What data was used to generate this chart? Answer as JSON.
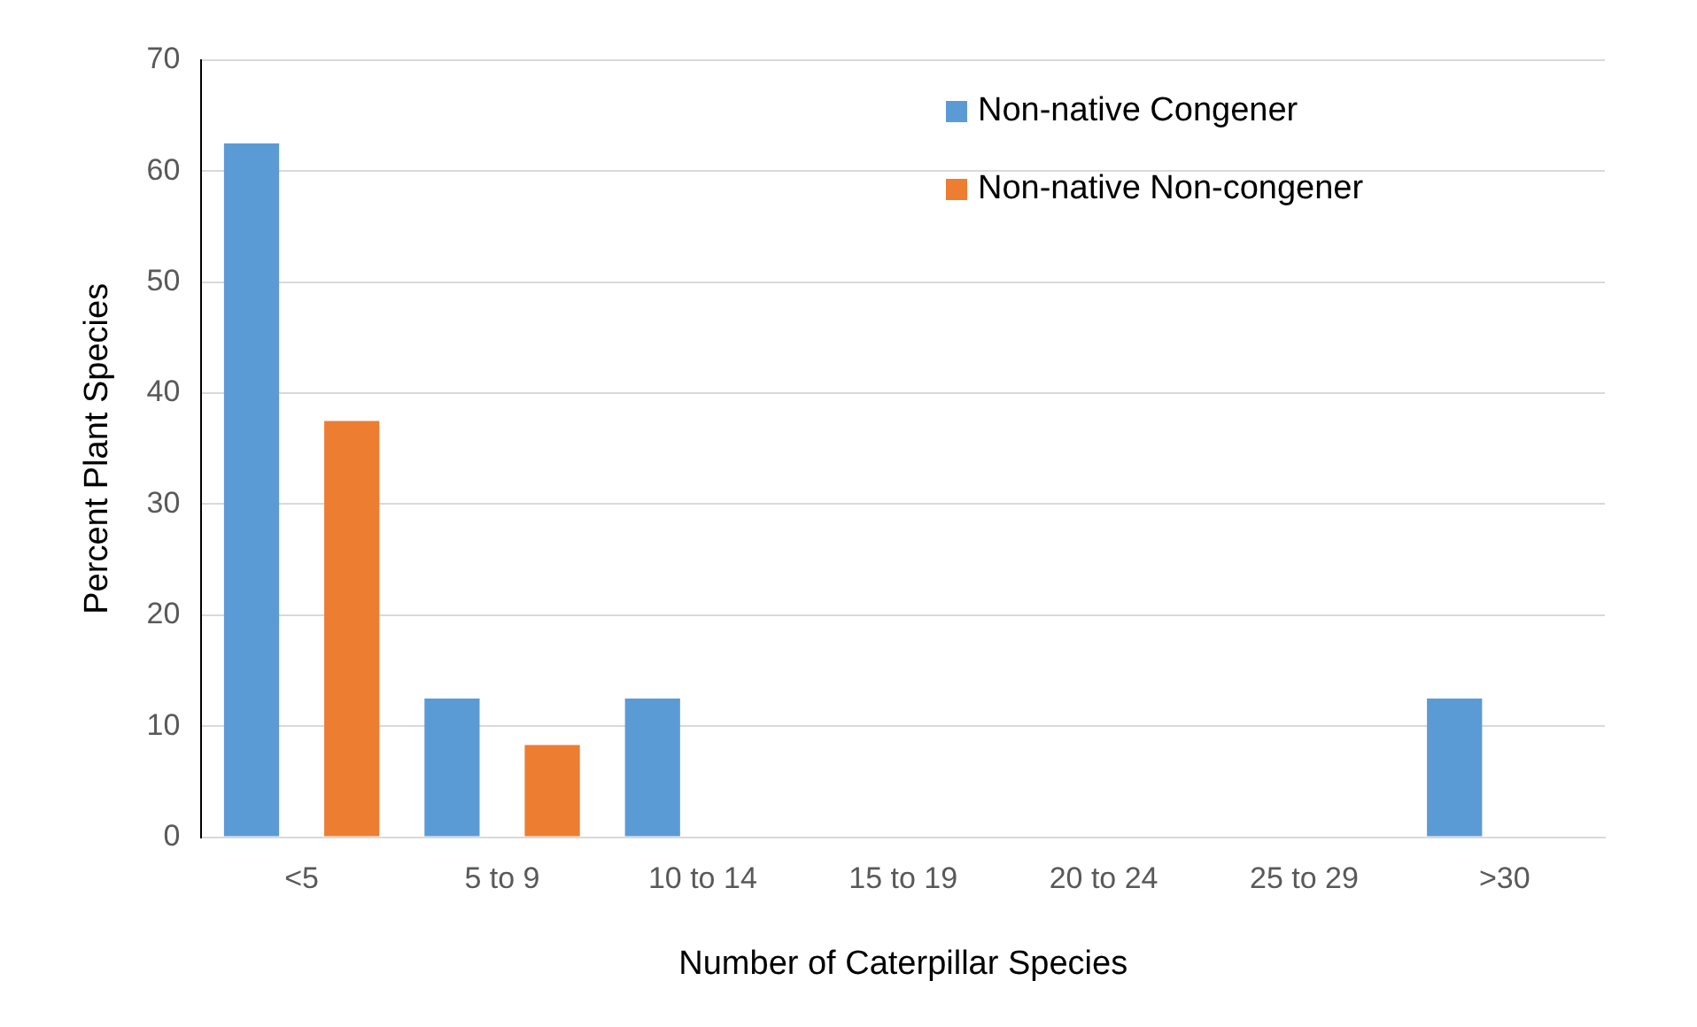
{
  "chart_data": {
    "type": "bar",
    "xlabel": "Number of Caterpillar Species",
    "ylabel": "Percent Plant Species",
    "categories": [
      "<5",
      "5 to 9",
      "10 to 14",
      "15 to 19",
      "20 to 24",
      "25 to 29",
      ">30"
    ],
    "series": [
      {
        "name": "Non-native Congener",
        "color": "#5b9bd5",
        "values": [
          62.5,
          12.5,
          12.5,
          0,
          0,
          0,
          12.5
        ]
      },
      {
        "name": "Non-native Non-congener",
        "color": "#ed7d31",
        "values": [
          37.5,
          8.3,
          0,
          0,
          0,
          0,
          0
        ]
      }
    ],
    "ylim": [
      0,
      70
    ],
    "yticks": [
      0,
      10,
      20,
      30,
      40,
      50,
      60,
      70
    ],
    "grid": "y",
    "legend": "top right"
  }
}
